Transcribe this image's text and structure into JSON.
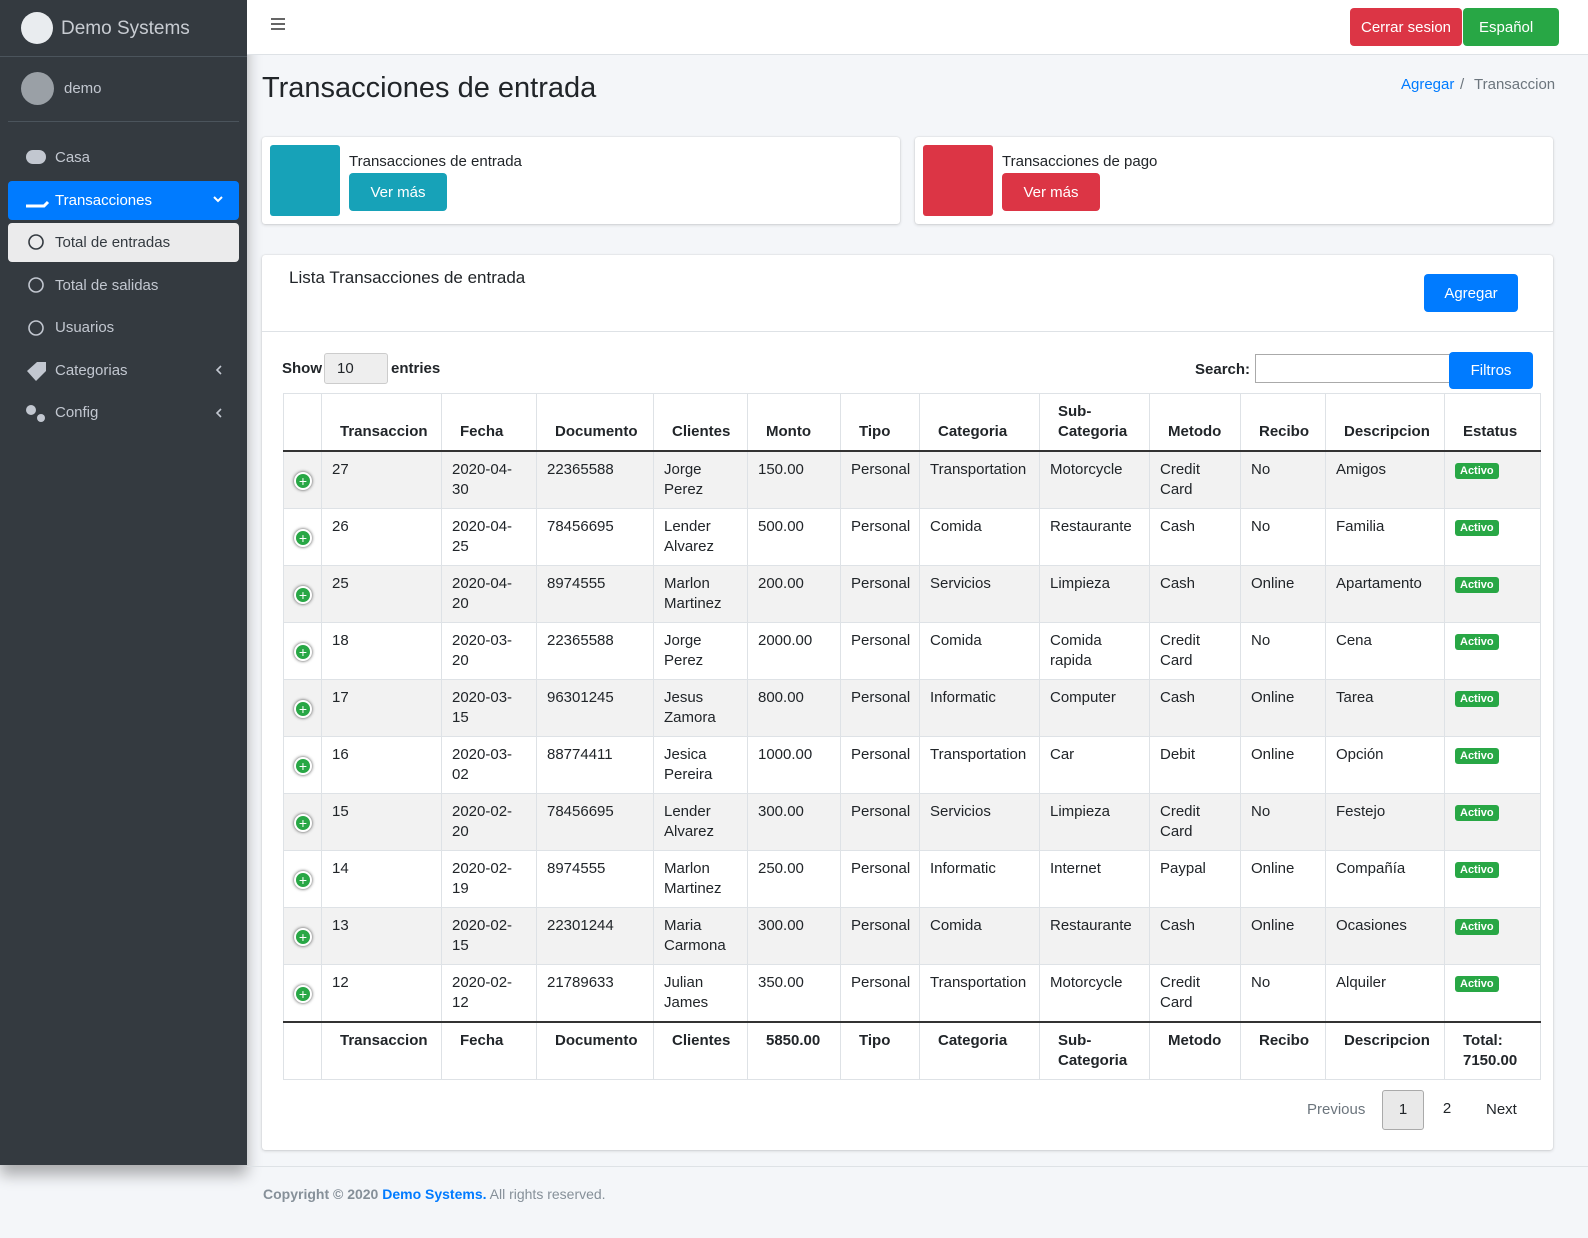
{
  "sidebar": {
    "brand": "Demo Systems",
    "user": "demo",
    "menu": [
      "Casa",
      "Transacciones",
      "Total de entradas",
      "Total de salidas",
      "Usuarios",
      "Categorias",
      "Config"
    ]
  },
  "topbar": {
    "logout": "Cerrar sesion",
    "language": "Español"
  },
  "header": {
    "title": "Transacciones de entrada",
    "breadcrumb": [
      "Agregar",
      "Transaccion"
    ]
  },
  "info_boxes": [
    {
      "label": "Transacciones de entrada",
      "button": "Ver más"
    },
    {
      "label": "Transacciones de pago",
      "button": "Ver más"
    }
  ],
  "card": {
    "title": "Lista Transacciones de entrada",
    "add_button": "Agregar",
    "show": "Show",
    "page_length": "10",
    "entries": "entries",
    "search": "Search:",
    "filters": "Filtros"
  },
  "table": {
    "columns": [
      "Transaccion",
      "Fecha",
      "Documento",
      "Clientes",
      "Monto",
      "Tipo",
      "Categoria",
      "Sub-Categoria",
      "Metodo",
      "Recibo",
      "Descripcion",
      "Estatus"
    ],
    "rows": [
      [
        "27",
        "2020-04-30",
        "22365588",
        "Jorge Perez",
        "150.00",
        "Personal",
        "Transportation",
        "Motorcycle",
        "Credit Card",
        "No",
        "Amigos",
        "Activo"
      ],
      [
        "26",
        "2020-04-25",
        "78456695",
        "Lender Alvarez",
        "500.00",
        "Personal",
        "Comida",
        "Restaurante",
        "Cash",
        "No",
        "Familia",
        "Activo"
      ],
      [
        "25",
        "2020-04-20",
        "8974555",
        "Marlon Martinez",
        "200.00",
        "Personal",
        "Servicios",
        "Limpieza",
        "Cash",
        "Online",
        "Apartamento",
        "Activo"
      ],
      [
        "18",
        "2020-03-20",
        "22365588",
        "Jorge Perez",
        "2000.00",
        "Personal",
        "Comida",
        "Comida rapida",
        "Credit Card",
        "No",
        "Cena",
        "Activo"
      ],
      [
        "17",
        "2020-03-15",
        "96301245",
        "Jesus Zamora",
        "800.00",
        "Personal",
        "Informatic",
        "Computer",
        "Cash",
        "Online",
        "Tarea",
        "Activo"
      ],
      [
        "16",
        "2020-03-02",
        "88774411",
        "Jesica Pereira",
        "1000.00",
        "Personal",
        "Transportation",
        "Car",
        "Debit",
        "Online",
        "Opción",
        "Activo"
      ],
      [
        "15",
        "2020-02-20",
        "78456695",
        "Lender Alvarez",
        "300.00",
        "Personal",
        "Servicios",
        "Limpieza",
        "Credit Card",
        "No",
        "Festejo",
        "Activo"
      ],
      [
        "14",
        "2020-02-19",
        "8974555",
        "Marlon Martinez",
        "250.00",
        "Personal",
        "Informatic",
        "Internet",
        "Paypal",
        "Online",
        "Compañía",
        "Activo"
      ],
      [
        "13",
        "2020-02-15",
        "22301244",
        "Maria Carmona",
        "300.00",
        "Personal",
        "Comida",
        "Restaurante",
        "Cash",
        "Online",
        "Ocasiones",
        "Activo"
      ],
      [
        "12",
        "2020-02-12",
        "21789633",
        "Julian James",
        "350.00",
        "Personal",
        "Transportation",
        "Motorcycle",
        "Credit Card",
        "No",
        "Alquiler",
        "Activo"
      ]
    ],
    "footer": [
      "Transaccion",
      "Fecha",
      "Documento",
      "Clientes",
      "5850.00",
      "Tipo",
      "Categoria",
      "Sub-Categoria",
      "Metodo",
      "Recibo",
      "Descripcion",
      "Total: 7150.00"
    ]
  },
  "pagination": {
    "previous": "Previous",
    "pages": [
      "1",
      "2"
    ],
    "next": "Next"
  },
  "footer": {
    "copyright": "Copyright © 2020",
    "company": "Demo Systems.",
    "rights": "All rights reserved."
  }
}
